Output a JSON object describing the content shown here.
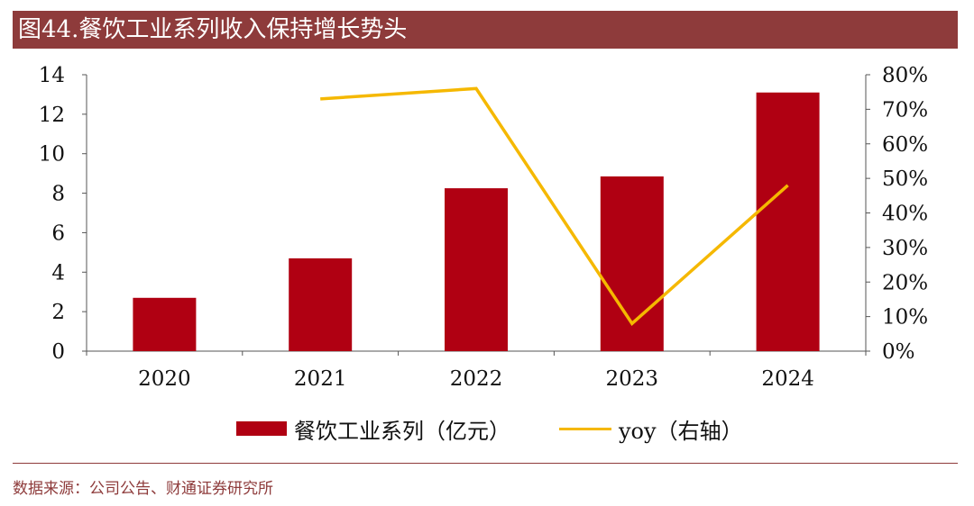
{
  "header": {
    "title": "图44.餐饮工业系列收入保持增长势头"
  },
  "chart_data": {
    "type": "bar",
    "categories": [
      "2020",
      "2021",
      "2022",
      "2023",
      "2024"
    ],
    "series": [
      {
        "name": "餐饮工业系列（亿元）",
        "type": "bar",
        "axis": "left",
        "values": [
          2.7,
          4.7,
          8.25,
          8.85,
          13.1
        ]
      },
      {
        "name": "yoy（右轴）",
        "type": "line",
        "axis": "right",
        "values": [
          null,
          73,
          76,
          8,
          48
        ]
      }
    ],
    "left_axis": {
      "ylim": [
        0,
        14
      ],
      "ticks": [
        "0",
        "2",
        "4",
        "6",
        "8",
        "10",
        "12",
        "14"
      ]
    },
    "right_axis": {
      "ylim": [
        0,
        80
      ],
      "ticks": [
        "0%",
        "10%",
        "20%",
        "30%",
        "40%",
        "50%",
        "60%",
        "70%",
        "80%"
      ]
    },
    "colors": {
      "bar": "#b00012",
      "line": "#f5b800",
      "accent": "#8e3b3b"
    },
    "legend_position": "bottom",
    "grid": false
  },
  "legend": {
    "bar_label": "餐饮工业系列（亿元）",
    "line_label": "yoy（右轴）"
  },
  "footer": {
    "source": "数据来源：公司公告、财通证券研究所"
  }
}
